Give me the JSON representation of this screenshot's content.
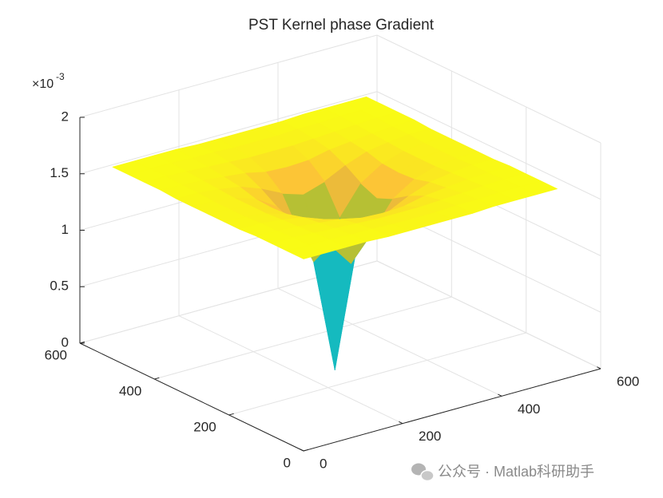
{
  "chart_data": {
    "type": "surface",
    "title": "PST Kernel phase Gradient",
    "x": [
      0,
      43,
      85,
      128,
      171,
      213,
      256,
      299,
      341,
      384,
      427,
      469,
      512
    ],
    "y": [
      0,
      43,
      85,
      128,
      171,
      213,
      256,
      299,
      341,
      384,
      427,
      469,
      512
    ],
    "z": [
      [
        1.7,
        1.7,
        1.7,
        1.7,
        1.69,
        1.69,
        1.69,
        1.69,
        1.69,
        1.7,
        1.7,
        1.7,
        1.7
      ],
      [
        1.7,
        1.7,
        1.7,
        1.69,
        1.69,
        1.68,
        1.68,
        1.68,
        1.69,
        1.69,
        1.7,
        1.7,
        1.7
      ],
      [
        1.7,
        1.7,
        1.69,
        1.68,
        1.67,
        1.66,
        1.66,
        1.66,
        1.67,
        1.68,
        1.69,
        1.7,
        1.7
      ],
      [
        1.7,
        1.69,
        1.68,
        1.66,
        1.64,
        1.6,
        1.59,
        1.6,
        1.64,
        1.66,
        1.68,
        1.69,
        1.7
      ],
      [
        1.69,
        1.69,
        1.67,
        1.64,
        1.57,
        1.48,
        1.42,
        1.48,
        1.57,
        1.64,
        1.67,
        1.69,
        1.69
      ],
      [
        1.69,
        1.68,
        1.66,
        1.6,
        1.48,
        1.23,
        1.01,
        1.23,
        1.48,
        1.6,
        1.66,
        1.68,
        1.69
      ],
      [
        1.69,
        1.68,
        1.66,
        1.59,
        1.42,
        1.01,
        0,
        1.01,
        1.42,
        1.59,
        1.66,
        1.68,
        1.69
      ],
      [
        1.69,
        1.68,
        1.66,
        1.6,
        1.48,
        1.23,
        1.01,
        1.23,
        1.48,
        1.6,
        1.66,
        1.68,
        1.69
      ],
      [
        1.69,
        1.69,
        1.67,
        1.64,
        1.57,
        1.48,
        1.42,
        1.48,
        1.57,
        1.64,
        1.67,
        1.69,
        1.69
      ],
      [
        1.7,
        1.69,
        1.68,
        1.66,
        1.64,
        1.6,
        1.59,
        1.6,
        1.64,
        1.66,
        1.68,
        1.69,
        1.7
      ],
      [
        1.7,
        1.7,
        1.69,
        1.68,
        1.67,
        1.66,
        1.66,
        1.66,
        1.67,
        1.68,
        1.69,
        1.7,
        1.7
      ],
      [
        1.7,
        1.7,
        1.7,
        1.69,
        1.69,
        1.68,
        1.68,
        1.68,
        1.69,
        1.69,
        1.7,
        1.7,
        1.7
      ],
      [
        1.7,
        1.7,
        1.7,
        1.7,
        1.69,
        1.69,
        1.69,
        1.69,
        1.69,
        1.7,
        1.7,
        1.7,
        1.7
      ]
    ],
    "xlim": [
      0,
      600
    ],
    "ylim": [
      0,
      600
    ],
    "zlim": [
      0,
      2
    ],
    "xticks": [
      0,
      200,
      400,
      600
    ],
    "yticks": [
      0,
      200,
      400,
      600
    ],
    "zticks": [
      0,
      0.5,
      1,
      1.5,
      2
    ],
    "z_multiplier": {
      "base": "×10",
      "exponent": "-3"
    },
    "colormap": "parula",
    "grid": true
  },
  "watermark": "公众号 · Matlab科研助手"
}
